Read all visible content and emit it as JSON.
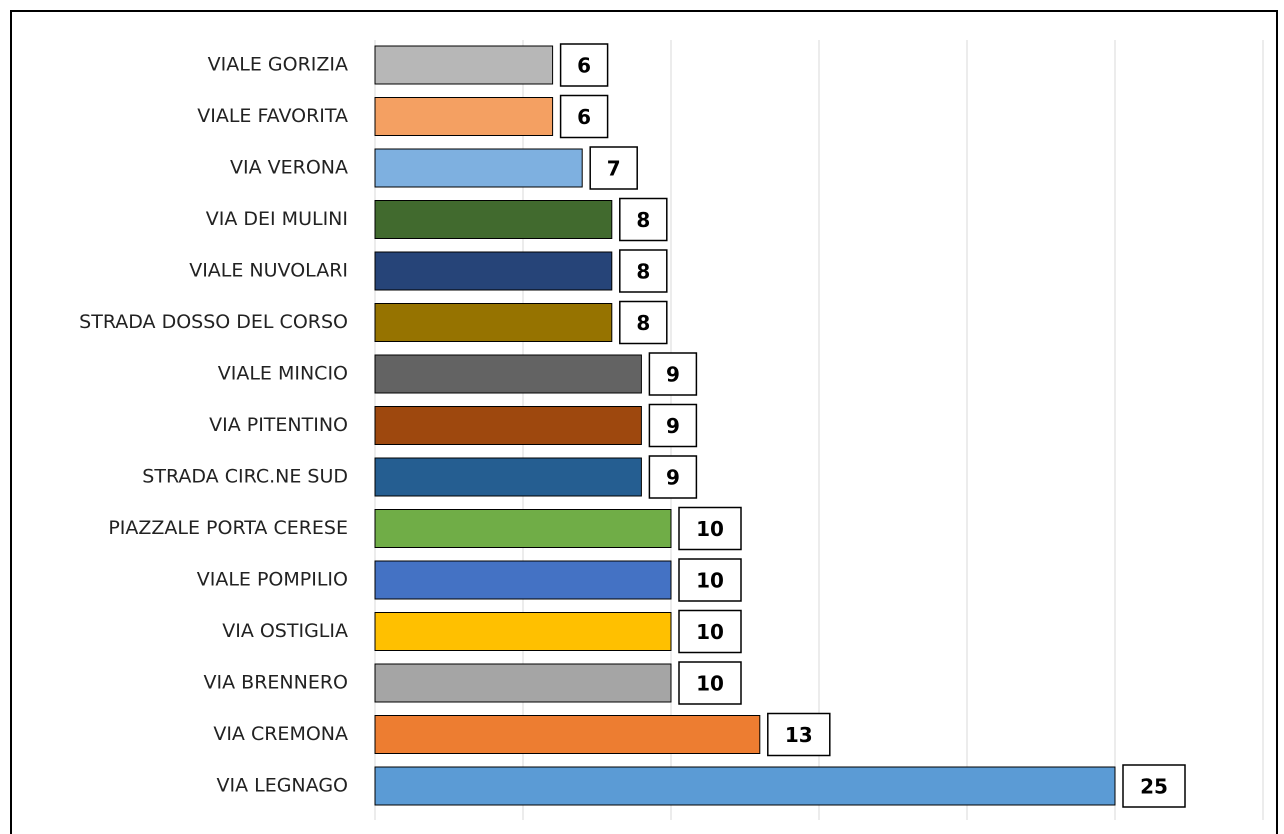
{
  "chart_data": {
    "type": "hbar",
    "categories": [
      "VIALE GORIZIA",
      "VIALE FAVORITA",
      "VIA VERONA",
      "VIA DEI MULINI",
      "VIALE NUVOLARI",
      "STRADA DOSSO DEL CORSO",
      "VIALE MINCIO",
      "VIA PITENTINO",
      "STRADA CIRC.NE SUD",
      "PIAZZALE PORTA CERESE",
      "VIALE POMPILIO",
      "VIA OSTIGLIA",
      "VIA BRENNERO",
      "VIA CREMONA",
      "VIA LEGNAGO"
    ],
    "values": [
      6,
      6,
      7,
      8,
      8,
      8,
      9,
      9,
      9,
      10,
      10,
      10,
      10,
      13,
      25
    ],
    "colors": [
      "#b7b7b7",
      "#f4a062",
      "#7eb0e0",
      "#416a2e",
      "#264478",
      "#967300",
      "#636363",
      "#9e480e",
      "#255e91",
      "#70ad47",
      "#4472c4",
      "#ffc000",
      "#a5a5a5",
      "#ed7d31",
      "#5b9bd5"
    ],
    "xlim": [
      0,
      30
    ],
    "xticks": [
      0,
      5,
      10,
      15,
      20,
      25,
      30
    ],
    "grid": true
  }
}
